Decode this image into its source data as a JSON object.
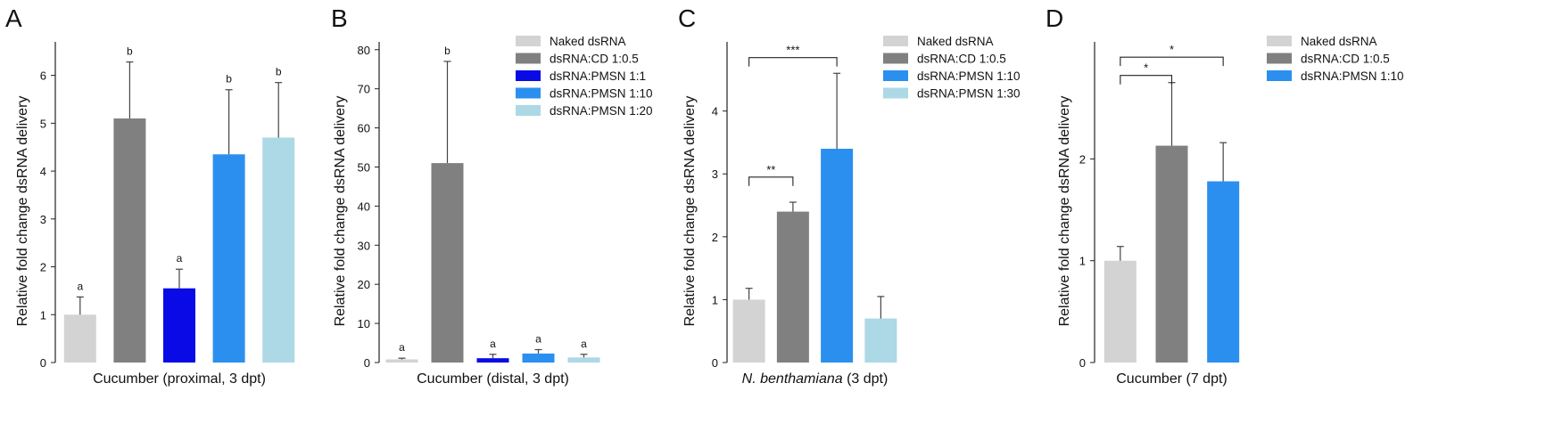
{
  "panels": [
    {
      "letter": "A",
      "xlabel": "Cucumber (proximal, 3 dpt)",
      "xlabel_italic_prefix": "",
      "ylabel": "Relative fold change dsRNA delivery",
      "yticks": [
        0,
        1,
        2,
        3,
        4,
        5,
        6
      ],
      "ytick_labels": [
        "0",
        "1",
        "2",
        "3",
        "4",
        "5",
        "6"
      ],
      "legend": []
    },
    {
      "letter": "B",
      "xlabel": "Cucumber (distal, 3 dpt)",
      "xlabel_italic_prefix": "",
      "ylabel": "Relative fold change dsRNA delivery",
      "yticks": [
        0,
        10,
        20,
        30,
        40,
        50,
        60,
        70,
        80
      ],
      "ytick_labels": [
        "0",
        "10",
        "20",
        "30",
        "40",
        "50",
        "60",
        "70",
        "80"
      ],
      "legend": [
        "Naked dsRNA",
        "dsRNA:CD 1:0.5",
        "dsRNA:PMSN 1:1",
        "dsRNA:PMSN 1:10",
        "dsRNA:PMSN 1:20"
      ]
    },
    {
      "letter": "C",
      "xlabel": "(3 dpt)",
      "xlabel_italic_prefix": "N. benthamiana",
      "ylabel": "Relative fold change dsRNA delivery",
      "yticks": [
        0,
        1,
        2,
        3,
        4
      ],
      "ytick_labels": [
        "0",
        "1",
        "2",
        "3",
        "4"
      ],
      "legend": [
        "Naked dsRNA",
        "dsRNA:CD 1:0.5",
        "dsRNA:PMSN 1:10",
        "dsRNA:PMSN 1:30"
      ]
    },
    {
      "letter": "D",
      "xlabel": "Cucumber (7 dpt)",
      "xlabel_italic_prefix": "",
      "ylabel": "Relative fold change dsRNA delivery",
      "yticks": [
        0,
        1,
        2
      ],
      "ytick_labels": [
        "0",
        "1",
        "2"
      ],
      "legend": [
        "Naked dsRNA",
        "dsRNA:CD 1:0.5",
        "dsRNA:PMSN 1:10"
      ]
    }
  ],
  "colors": {
    "Naked dsRNA": "#d3d3d3",
    "dsRNA:CD 1:0.5": "#808080",
    "dsRNA:PMSN 1:1": "#0a0ae6",
    "dsRNA:PMSN 1:10": "#2b8ff0",
    "dsRNA:PMSN 1:20": "#add8e6",
    "dsRNA:PMSN 1:30": "#add8e6"
  },
  "chart_data": [
    {
      "type": "bar",
      "panel": "A",
      "categories": [
        "Naked dsRNA",
        "dsRNA:CD 1:0.5",
        "dsRNA:PMSN 1:1",
        "dsRNA:PMSN 1:10",
        "dsRNA:PMSN 1:20"
      ],
      "values": [
        1.0,
        5.1,
        1.55,
        4.35,
        4.7
      ],
      "errors": [
        0.37,
        1.18,
        0.4,
        1.35,
        1.15
      ],
      "letters": [
        "a",
        "b",
        "a",
        "b",
        "b"
      ],
      "xlabel": "Cucumber (proximal, 3 dpt)",
      "ylabel": "Relative fold change dsRNA delivery",
      "ylim": [
        0,
        6.7
      ],
      "legend": "none"
    },
    {
      "type": "bar",
      "panel": "B",
      "categories": [
        "Naked dsRNA",
        "dsRNA:CD 1:0.5",
        "dsRNA:PMSN 1:1",
        "dsRNA:PMSN 1:10",
        "dsRNA:PMSN 1:20"
      ],
      "values": [
        0.8,
        51.0,
        1.1,
        2.3,
        1.3
      ],
      "errors": [
        0.3,
        26.0,
        1.0,
        1.0,
        0.8
      ],
      "letters": [
        "a",
        "b",
        "a",
        "a",
        "a"
      ],
      "xlabel": "Cucumber (distal, 3 dpt)",
      "ylabel": "Relative fold change dsRNA delivery",
      "ylim": [
        0,
        82
      ],
      "legend": "top-right"
    },
    {
      "type": "bar",
      "panel": "C",
      "categories": [
        "Naked dsRNA",
        "dsRNA:CD 1:0.5",
        "dsRNA:PMSN 1:10",
        "dsRNA:PMSN 1:30"
      ],
      "values": [
        1.0,
        2.4,
        3.4,
        0.7
      ],
      "errors": [
        0.18,
        0.15,
        1.2,
        0.35
      ],
      "significance": [
        {
          "from": 0,
          "to": 1,
          "label": "**",
          "y": 2.95
        },
        {
          "from": 0,
          "to": 2,
          "label": "***",
          "y": 4.85
        }
      ],
      "xlabel": "N. benthamiana (3 dpt)",
      "ylabel": "Relative fold change dsRNA delivery",
      "ylim": [
        0,
        5.1
      ],
      "legend": "top-right"
    },
    {
      "type": "bar",
      "panel": "D",
      "categories": [
        "Naked dsRNA",
        "dsRNA:CD 1:0.5",
        "dsRNA:PMSN 1:10"
      ],
      "values": [
        1.0,
        2.13,
        1.78
      ],
      "errors": [
        0.14,
        0.62,
        0.38
      ],
      "significance": [
        {
          "from": 0,
          "to": 1,
          "label": "*",
          "y": 2.82
        },
        {
          "from": 0,
          "to": 2,
          "label": "*",
          "y": 3.0
        }
      ],
      "xlabel": "Cucumber (7 dpt)",
      "ylabel": "Relative fold change dsRNA delivery",
      "ylim": [
        0,
        3.15
      ],
      "legend": "top-right"
    }
  ]
}
